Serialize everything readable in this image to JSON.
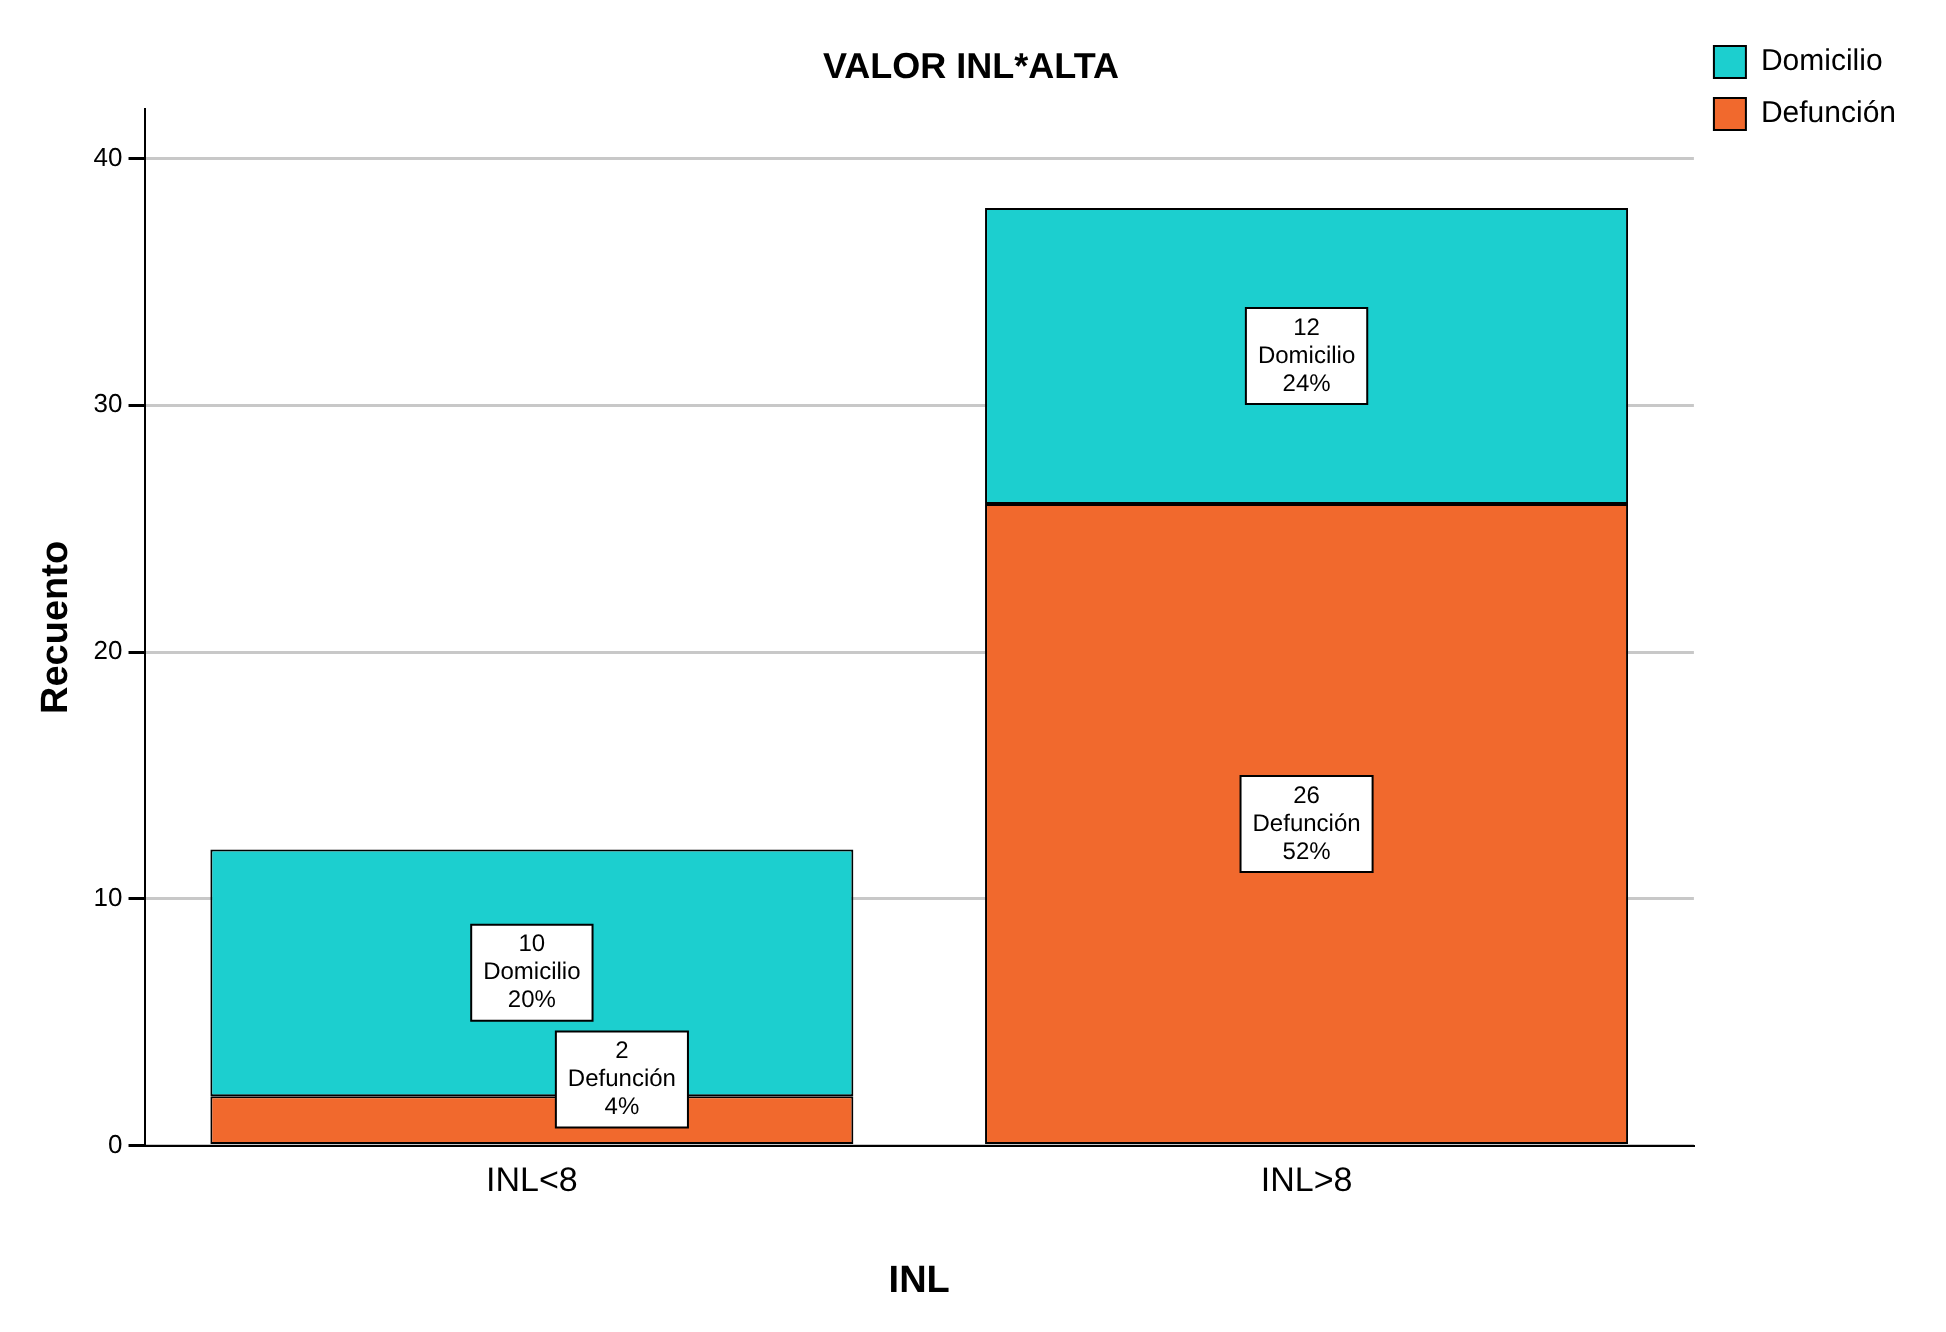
{
  "chart_data": {
    "type": "bar",
    "title": "VALOR INL*ALTA",
    "xlabel": "INL",
    "ylabel": "Recuento",
    "categories": [
      "INL<8",
      "INL>8"
    ],
    "stacked": true,
    "series": [
      {
        "name": "Defunción",
        "color": "#f1692d",
        "values": [
          2,
          26
        ],
        "value_labels": [
          "2\nDefunción\n4%",
          "26\nDefunción\n52%"
        ]
      },
      {
        "name": "Domicilio",
        "color": "#1ccfcf",
        "values": [
          10,
          12
        ],
        "value_labels": [
          "10\nDomicilio\n20%",
          "12\nDomicilio\n24%"
        ]
      }
    ],
    "ylim": [
      0,
      42
    ],
    "yticks": [
      0,
      10,
      20,
      30,
      40
    ],
    "grid": "y",
    "legend": "top right"
  }
}
